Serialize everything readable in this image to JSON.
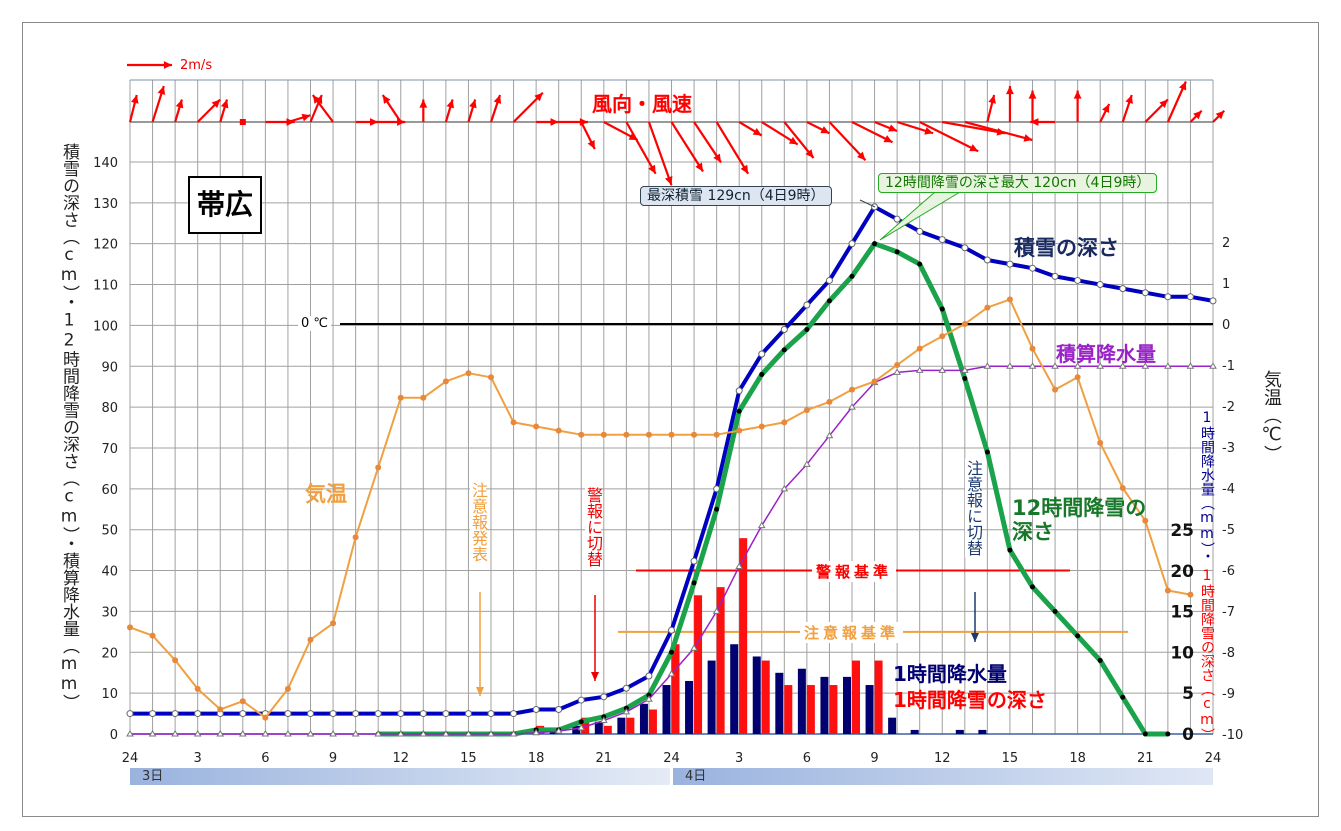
{
  "station": "帯広",
  "chart_data": {
    "type": "line",
    "title": "帯広",
    "x_hours": [
      0,
      1,
      2,
      3,
      4,
      5,
      6,
      7,
      8,
      9,
      10,
      11,
      12,
      13,
      14,
      15,
      16,
      17,
      18,
      19,
      20,
      21,
      22,
      23,
      24,
      25,
      26,
      27,
      28,
      29,
      30,
      31,
      32,
      33,
      34,
      35,
      36,
      37,
      38,
      39,
      40,
      41,
      42,
      43,
      44,
      45,
      46,
      47,
      48
    ],
    "x_tick_labels": [
      "24",
      "3",
      "6",
      "9",
      "12",
      "15",
      "18",
      "21",
      "24",
      "3",
      "6",
      "9",
      "12",
      "15",
      "18",
      "21",
      "24"
    ],
    "days": [
      "3日",
      "4日"
    ],
    "left_axis": {
      "label": "積雪の深さ（cm）・12時間降雪の深さ（cm）・積算降水量（mm）",
      "range": [
        0,
        140
      ],
      "ticks": [
        "0",
        "10",
        "20",
        "30",
        "40",
        "50",
        "60",
        "70",
        "80",
        "90",
        "100",
        "110",
        "120",
        "130",
        "140"
      ]
    },
    "temp_axis": {
      "label": "気温（℃）",
      "range": [
        -10,
        2
      ],
      "ticks": [
        "2",
        "1",
        "0",
        "-1",
        "-2",
        "-3",
        "-4",
        "-5",
        "-6",
        "-7",
        "-8",
        "-9",
        "-10"
      ]
    },
    "bar_axis": {
      "label_precip": "1時間降水量（mm）・",
      "label_snow": "1時間降雪の深さ（cm）",
      "range": [
        0,
        25
      ],
      "ticks": [
        "0",
        "5",
        "10",
        "15",
        "20",
        "25"
      ]
    },
    "series": [
      {
        "name": "積雪の深さ",
        "axis": "left",
        "color": "#0000c0",
        "values": [
          5,
          5,
          5,
          5,
          5,
          5,
          5,
          5,
          5,
          5,
          5,
          5,
          5,
          5,
          5,
          5,
          5,
          5,
          6,
          6,
          8.3,
          9.1,
          11.2,
          14.2,
          25.4,
          42.3,
          60,
          84,
          93,
          99,
          105,
          111,
          120,
          129,
          126,
          123,
          121,
          119,
          116,
          115,
          114,
          112,
          111,
          110,
          109,
          108,
          107,
          107,
          106
        ]
      },
      {
        "name": "12時間降雪の深さ",
        "axis": "left",
        "color": "#1aa34a",
        "values": [
          null,
          null,
          null,
          null,
          null,
          null,
          null,
          null,
          null,
          null,
          null,
          0,
          0,
          0,
          0,
          0,
          0,
          0,
          1,
          1,
          3,
          4.2,
          6.3,
          9.5,
          20,
          37,
          55,
          79,
          88,
          94,
          99,
          106,
          112,
          120,
          118,
          115,
          104,
          87,
          69,
          45,
          36,
          30,
          24,
          18,
          9,
          0,
          0,
          null,
          null
        ]
      },
      {
        "name": "積算降水量",
        "axis": "left",
        "color": "#9a22c8",
        "values": [
          0,
          0,
          0,
          0,
          0,
          0,
          0,
          0,
          0,
          0,
          0,
          0,
          0,
          0,
          0,
          0,
          0,
          0,
          0.3,
          0.7,
          1.5,
          3.3,
          5.4,
          8.5,
          14.7,
          21,
          30,
          41,
          51,
          60,
          66,
          73,
          80,
          86,
          88.5,
          89,
          89,
          89,
          90,
          90,
          90,
          90,
          90,
          90,
          90,
          90,
          90,
          90,
          90
        ]
      },
      {
        "name": "気温",
        "axis": "temp",
        "color": "#f0a040",
        "values": [
          -7.4,
          -7.6,
          -8.2,
          -8.9,
          -9.4,
          -9.2,
          -9.6,
          -8.9,
          -7.7,
          -7.3,
          -5.2,
          -3.5,
          -1.8,
          -1.8,
          -1.4,
          -1.2,
          -1.3,
          -2.4,
          -2.5,
          -2.6,
          -2.7,
          -2.7,
          -2.7,
          -2.7,
          -2.7,
          -2.7,
          -2.7,
          -2.6,
          -2.5,
          -2.4,
          -2.1,
          -1.9,
          -1.6,
          -1.4,
          -1.0,
          -0.6,
          -0.3,
          0.0,
          0.4,
          0.6,
          -0.6,
          -1.6,
          -1.3,
          -2.9,
          -4.0,
          -4.8,
          -6.5,
          -6.6,
          null
        ]
      },
      {
        "name": "1時間降水量",
        "axis": "bar",
        "type": "bar",
        "color": "#000070",
        "values": [
          0,
          0,
          0,
          0,
          0,
          0,
          0,
          0,
          0,
          0,
          0,
          0,
          0,
          0,
          0,
          0,
          0,
          0,
          0,
          0.3,
          1,
          1.5,
          2,
          3.7,
          6,
          6.5,
          9,
          11,
          9.5,
          7.5,
          8,
          7,
          7,
          6,
          2,
          0.5,
          0,
          0.5,
          0.5,
          0,
          0,
          0,
          0,
          0,
          0,
          0,
          0,
          0,
          0
        ]
      },
      {
        "name": "1時間降雪の深さ",
        "axis": "bar",
        "type": "bar",
        "color": "#ff1010",
        "values": [
          0,
          0,
          0,
          0,
          0,
          0,
          0,
          0,
          0,
          0,
          0,
          0,
          0,
          0,
          0,
          0,
          0,
          0,
          1,
          0,
          2,
          1,
          2,
          3,
          11,
          17,
          18,
          24,
          9,
          6,
          6,
          6,
          9,
          9,
          0,
          0,
          0,
          0,
          0,
          0,
          0,
          0,
          0,
          0,
          0,
          0,
          0,
          0,
          0
        ]
      }
    ],
    "wind": {
      "title": "風向・風速",
      "scale_label": "2m/s",
      "u": [
        0.3,
        0.5,
        0.3,
        1.0,
        0.3,
        0,
        1.3,
        1.0,
        0.5,
        -0.9,
        1.0,
        1.2,
        -0.8,
        0,
        0.3,
        0.3,
        0.4,
        1.3,
        1.0,
        1.3,
        0.6,
        1.5,
        1.3,
        1.0,
        1.4,
        1.2,
        1.4,
        1.0,
        1.6,
        1.3,
        1.0,
        1.6,
        1.8,
        1.0,
        1.6,
        2.6,
        2.8,
        3.0,
        0.3,
        0,
        0,
        -1.1,
        0,
        0.4,
        0.4,
        1.0,
        0.8,
        0.5,
        0.5
      ],
      "v": [
        1.2,
        1.6,
        1.0,
        1.0,
        1.0,
        0,
        0,
        0.3,
        1.2,
        1.2,
        0,
        0,
        1.2,
        1.0,
        1.0,
        1.0,
        1.2,
        1.3,
        0,
        0,
        -1.2,
        -0.8,
        -2.3,
        -2.8,
        -2.2,
        -1.8,
        -2.3,
        -0.6,
        -1.0,
        -1.6,
        -0.5,
        -1.7,
        -0.9,
        -0.4,
        -0.5,
        -1.3,
        -0.5,
        -0.8,
        1.2,
        1.6,
        1.4,
        0,
        1.4,
        0.8,
        1.2,
        1.0,
        1.8,
        0.5,
        0.5
      ]
    },
    "zero_line_label": "0 ℃",
    "thresholds": [
      {
        "name": "警報基準",
        "value": 40,
        "color": "#ff0000"
      },
      {
        "name": "注意報基準",
        "value": 25,
        "color": "#f0a040"
      }
    ],
    "annotations": {
      "max_depth": "最深積雪 129cn（4日9時）",
      "max_12h": "12時間降雪の深さ最大 120cn（4日9時）",
      "advisory_issued": "注意報発表",
      "switch_warning": "警報に切替",
      "switch_advisory": "注意報に切替"
    }
  }
}
